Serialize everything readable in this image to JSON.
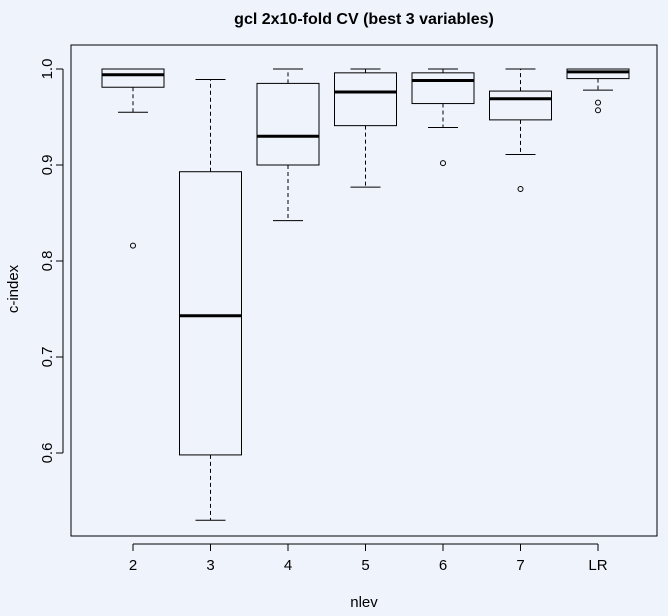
{
  "chart_data": {
    "type": "boxplot",
    "title": "gcl 2x10-fold CV (best 3 variables)",
    "xlabel": "nlev",
    "ylabel": "c-index",
    "ylim": [
      0.52,
      1.025
    ],
    "yticks": [
      0.6,
      0.7,
      0.8,
      0.9,
      1.0
    ],
    "ytick_labels": [
      "0.6",
      "0.7",
      "0.8",
      "0.9",
      "1.0"
    ],
    "categories": [
      "2",
      "3",
      "4",
      "5",
      "6",
      "7",
      "LR"
    ],
    "boxes": [
      {
        "label": "2",
        "whisker_low": 0.955,
        "q1": 0.981,
        "median": 0.994,
        "q3": 1.0,
        "whisker_high": 1.0,
        "outliers": [
          0.816
        ]
      },
      {
        "label": "3",
        "whisker_low": 0.53,
        "q1": 0.598,
        "median": 0.743,
        "q3": 0.893,
        "whisker_high": 0.989,
        "outliers": []
      },
      {
        "label": "4",
        "whisker_low": 0.842,
        "q1": 0.9,
        "median": 0.93,
        "q3": 0.985,
        "whisker_high": 1.0,
        "outliers": []
      },
      {
        "label": "5",
        "whisker_low": 0.877,
        "q1": 0.941,
        "median": 0.976,
        "q3": 0.996,
        "whisker_high": 1.0,
        "outliers": []
      },
      {
        "label": "6",
        "whisker_low": 0.939,
        "q1": 0.964,
        "median": 0.988,
        "q3": 0.996,
        "whisker_high": 1.0,
        "outliers": [
          0.902
        ]
      },
      {
        "label": "7",
        "whisker_low": 0.911,
        "q1": 0.947,
        "median": 0.969,
        "q3": 0.977,
        "whisker_high": 1.0,
        "outliers": [
          0.875
        ]
      },
      {
        "label": "LR",
        "whisker_low": 0.978,
        "q1": 0.99,
        "median": 0.997,
        "q3": 1.0,
        "whisker_high": 1.0,
        "outliers": [
          0.965,
          0.957
        ]
      }
    ],
    "grid": false,
    "legend": "none"
  }
}
